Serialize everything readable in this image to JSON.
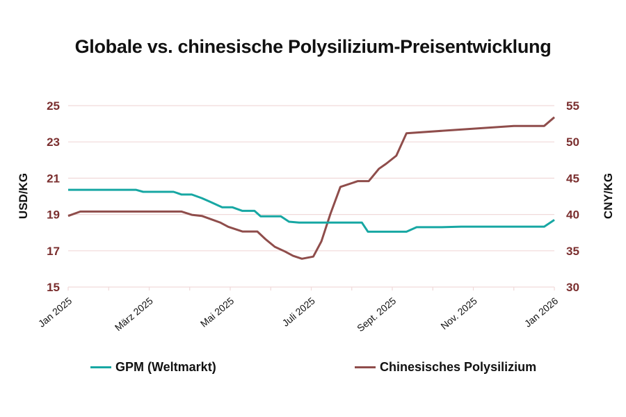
{
  "title": "Globale vs. chinesische Polysilizium-Preisentwicklung",
  "colors": {
    "gpm": "#17a7a3",
    "china": "#8f4d4b",
    "tick_label": "#7a2e2e",
    "grid": "#f0d9d9"
  },
  "axes": {
    "left_title": "USD/KG",
    "right_title": "CNY/KG",
    "left_ticks": [
      "25",
      "23",
      "21",
      "19",
      "17",
      "15"
    ],
    "right_ticks": [
      "55",
      "50",
      "45",
      "40",
      "35",
      "30"
    ],
    "x_ticks": [
      "Jan 2025",
      "März 2025",
      "Mai 2025",
      "Juli 2025",
      "Sept. 2025",
      "Nov. 2025",
      "Jan 2026"
    ]
  },
  "legend": {
    "gpm_label": "GPM (Weltmarkt)",
    "china_label": "Chinesisches Polysilizium"
  },
  "chart_data": {
    "type": "line",
    "title": "Globale vs. chinesische Polysilizium-Preisentwicklung",
    "xlabel": "",
    "ylabel": "USD/KG",
    "y2label": "CNY/KG",
    "ylim": [
      15,
      25
    ],
    "y2lim": [
      30,
      55
    ],
    "yticks": [
      15,
      17,
      19,
      21,
      23,
      25
    ],
    "y2ticks": [
      30,
      35,
      40,
      45,
      50,
      55
    ],
    "xticks": [
      "Jan 2025",
      "März 2025",
      "Mai 2025",
      "Juli 2025",
      "Sept. 2025",
      "Nov. 2025",
      "Jan 2026"
    ],
    "grid": true,
    "legend_position": "bottom",
    "x_unit": "month offset from Jan 2025 (0 = Jan 2025, 12 = Jan 2026)",
    "series": [
      {
        "name": "GPM (Weltmarkt)",
        "axis": "left",
        "unit": "USD/KG",
        "color": "#17a7a3",
        "x": [
          0,
          1.67,
          1.85,
          2.6,
          2.8,
          3.05,
          3.3,
          3.5,
          3.8,
          4.05,
          4.3,
          4.6,
          4.75,
          5.0,
          5.25,
          5.45,
          5.7,
          7.25,
          7.4,
          8.35,
          8.6,
          9.2,
          9.7,
          11.75,
          12.0
        ],
        "values": [
          20.36,
          20.36,
          20.25,
          20.25,
          20.1,
          20.1,
          19.9,
          19.7,
          19.4,
          19.4,
          19.2,
          19.2,
          18.9,
          18.9,
          18.9,
          18.6,
          18.55,
          18.55,
          18.05,
          18.05,
          18.3,
          18.3,
          18.33,
          18.33,
          18.7
        ]
      },
      {
        "name": "Chinesisches Polysilizium",
        "axis": "right",
        "unit": "CNY/KG",
        "color": "#8f4d4b",
        "x": [
          0,
          0.3,
          2.8,
          3.05,
          3.3,
          3.55,
          3.75,
          3.95,
          4.3,
          4.4,
          4.67,
          4.87,
          5.1,
          5.35,
          5.55,
          5.77,
          6.05,
          6.25,
          6.47,
          6.72,
          7.15,
          7.42,
          7.67,
          7.85,
          8.1,
          8.35,
          11.0,
          11.75,
          12.0
        ],
        "values": [
          39.8,
          40.4,
          40.4,
          39.95,
          39.8,
          39.3,
          38.9,
          38.3,
          37.65,
          37.65,
          37.65,
          36.6,
          35.55,
          34.9,
          34.3,
          33.9,
          34.2,
          36.3,
          40.05,
          43.8,
          44.6,
          44.6,
          46.3,
          47.0,
          48.1,
          51.2,
          52.2,
          52.2,
          53.4
        ]
      }
    ]
  }
}
